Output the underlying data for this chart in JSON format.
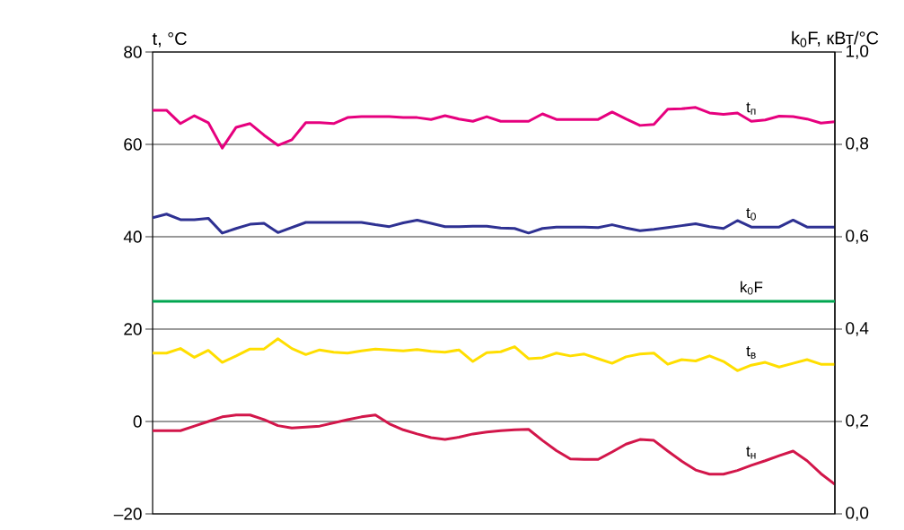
{
  "chart_data": {
    "type": "line",
    "ylabel": "t, °C",
    "y2label": "k$_{0}$F, кВт/°C",
    "categories": [
      null,
      null,
      null,
      null,
      null,
      null,
      null,
      null,
      null,
      null,
      null,
      null,
      null,
      null,
      null,
      null,
      null,
      null,
      null,
      null,
      null,
      null,
      null,
      null,
      null,
      null,
      null,
      null,
      null,
      null,
      null,
      null,
      null,
      null,
      null,
      null,
      null,
      null,
      null,
      null,
      null,
      null,
      null,
      null,
      null,
      null,
      null,
      null,
      null,
      null
    ],
    "ylim": [
      -20,
      80
    ],
    "yticks": [
      {
        "value": -20,
        "label": "–20"
      },
      0,
      20,
      40,
      60,
      80
    ],
    "y2lim": [
      0,
      1
    ],
    "y2ticks": [
      {
        "value": 0,
        "label": "0,0"
      },
      {
        "value": 0.2,
        "label": "0,2"
      },
      {
        "value": 0.4,
        "label": "0,4"
      },
      {
        "value": 0.6,
        "label": "0,6"
      },
      {
        "value": 0.8,
        "label": "0,8"
      },
      {
        "value": 1,
        "label": "1,0"
      }
    ],
    "grid": "y",
    "legend": false,
    "marker": "none",
    "line_style": "solid",
    "series": [
      {
        "name": "t$_{п}$",
        "color": "#e6007e",
        "values": [
          67.4,
          67.4,
          64.5,
          66.2,
          64.7,
          59.2,
          63.7,
          64.5,
          62,
          59.8,
          61,
          64.7,
          64.7,
          64.5,
          65.8,
          66,
          66,
          66,
          65.8,
          65.8,
          65.4,
          66.2,
          65.5,
          65,
          66,
          65,
          65,
          65,
          66.6,
          65.4,
          65.4,
          65.4,
          65.4,
          67,
          65.5,
          64.1,
          64.3,
          67.6,
          67.7,
          68,
          66.8,
          66.5,
          66.8,
          65,
          65.3,
          66.1,
          66,
          65.5,
          64.6,
          64.9
        ]
      },
      {
        "name": "t$_{0}$",
        "color": "#2e3192",
        "values": [
          44.1,
          44.9,
          43.7,
          43.7,
          44,
          40.8,
          41.8,
          42.7,
          42.9,
          40.9,
          42,
          43.1,
          43.1,
          43.1,
          43.1,
          43.1,
          42.6,
          42.2,
          43,
          43.6,
          42.9,
          42.2,
          42.2,
          42.3,
          42.3,
          41.9,
          41.8,
          40.8,
          41.8,
          42.1,
          42.1,
          42.1,
          42,
          42.6,
          41.9,
          41.3,
          41.6,
          42,
          42.4,
          42.8,
          42.2,
          41.8,
          43.5,
          42.1,
          42.1,
          42.1,
          43.6,
          42.1,
          42.1,
          42.1
        ]
      },
      {
        "name": "k$_{0}$F",
        "color": "#00a650",
        "axis": "y2",
        "values": [
          0.46,
          0.46,
          0.46,
          0.46,
          0.46,
          0.46,
          0.46,
          0.46,
          0.46,
          0.46,
          0.46,
          0.46,
          0.46,
          0.46,
          0.46,
          0.46,
          0.46,
          0.46,
          0.46,
          0.46,
          0.46,
          0.46,
          0.46,
          0.46,
          0.46,
          0.46,
          0.46,
          0.46,
          0.46,
          0.46,
          0.46,
          0.46,
          0.46,
          0.46,
          0.46,
          0.46,
          0.46,
          0.46,
          0.46,
          0.46,
          0.46,
          0.46,
          0.46,
          0.46,
          0.46,
          0.46,
          0.46,
          0.46,
          0.46,
          0.46
        ]
      },
      {
        "name": "t$_{в}$",
        "color": "#ffde00",
        "values": [
          14.8,
          14.8,
          15.8,
          13.9,
          15.4,
          12.8,
          14.2,
          15.7,
          15.7,
          17.9,
          15.8,
          14.5,
          15.5,
          15,
          14.8,
          15.3,
          15.7,
          15.5,
          15.3,
          15.6,
          15.2,
          15,
          15.5,
          13,
          14.9,
          15.1,
          16.2,
          13.6,
          13.8,
          14.8,
          14.2,
          14.6,
          13.6,
          12.6,
          14,
          14.6,
          14.8,
          12.4,
          13.4,
          13.1,
          14.2,
          13,
          11,
          12.2,
          12.8,
          11.8,
          12.6,
          13.4,
          12.4,
          12.4
        ]
      },
      {
        "name": "t$_{н}$",
        "color": "#d2164a",
        "values": [
          -2,
          -2,
          -2,
          -1,
          0,
          1,
          1.4,
          1.4,
          0.4,
          -0.9,
          -1.4,
          -1.2,
          -1,
          -0.3,
          0.4,
          1,
          1.4,
          -0.5,
          -1.8,
          -2.7,
          -3.5,
          -3.9,
          -3.4,
          -2.7,
          -2.3,
          -2,
          -1.8,
          -1.7,
          -4.1,
          -6.3,
          -8.1,
          -8.2,
          -8.2,
          -6.6,
          -4.9,
          -3.9,
          -4.1,
          -6.4,
          -8.6,
          -10.5,
          -11.4,
          -11.4,
          -10.6,
          -9.5,
          -8.5,
          -7.4,
          -6.4,
          -8.5,
          -11.3,
          -13.6
        ]
      }
    ]
  }
}
